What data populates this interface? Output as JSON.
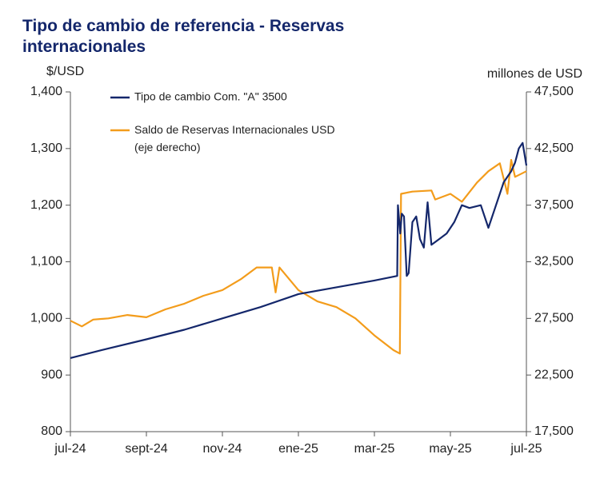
{
  "chart_data": {
    "type": "line",
    "title": "Tipo de cambio de referencia - Reservas internacionales",
    "y_label": "$/USD",
    "y2_label": "millones de USD",
    "xlim": [
      0,
      12
    ],
    "xticks": [
      {
        "value": 0,
        "label": "jul-24"
      },
      {
        "value": 2,
        "label": "sept-24"
      },
      {
        "value": 4,
        "label": "nov-24"
      },
      {
        "value": 6,
        "label": "ene-25"
      },
      {
        "value": 8,
        "label": "mar-25"
      },
      {
        "value": 10,
        "label": "may-25"
      },
      {
        "value": 12,
        "label": "jul-25"
      }
    ],
    "ylim": [
      800,
      1400
    ],
    "yticks": [
      800,
      900,
      {
        "value": 1000,
        "label": "1,000"
      },
      {
        "value": 1100,
        "label": "1,100"
      },
      {
        "value": 1200,
        "label": "1,200"
      },
      {
        "value": 1300,
        "label": "1,300"
      },
      {
        "value": 1400,
        "label": "1,400"
      }
    ],
    "y2lim": [
      17500,
      47500
    ],
    "y2ticks": [
      {
        "value": 17500,
        "label": "17,500"
      },
      {
        "value": 22500,
        "label": "22,500"
      },
      {
        "value": 27500,
        "label": "27,500"
      },
      {
        "value": 32500,
        "label": "32,500"
      },
      {
        "value": 37500,
        "label": "37,500"
      },
      {
        "value": 42500,
        "label": "42,500"
      },
      {
        "value": 47500,
        "label": "47,500"
      }
    ],
    "series": [
      {
        "name": "Tipo de cambio Com. \"A\" 3500",
        "color": "#14276b",
        "x": [
          0,
          1,
          2,
          3,
          4,
          5,
          6,
          7,
          8,
          8.6,
          8.62,
          8.68,
          8.72,
          8.78,
          8.85,
          8.9,
          9.0,
          9.1,
          9.2,
          9.3,
          9.4,
          9.5,
          9.7,
          9.9,
          10.1,
          10.3,
          10.5,
          10.8,
          11.0,
          11.2,
          11.4,
          11.6,
          11.7,
          11.8,
          11.9,
          12
        ],
        "values": [
          930,
          947,
          963,
          980,
          1000,
          1020,
          1043,
          1055,
          1067,
          1075,
          1200,
          1150,
          1185,
          1180,
          1075,
          1080,
          1170,
          1180,
          1140,
          1125,
          1205,
          1130,
          1140,
          1150,
          1170,
          1200,
          1195,
          1200,
          1160,
          1200,
          1240,
          1260,
          1275,
          1300,
          1310,
          1270
        ]
      },
      {
        "name": "Saldo de Reservas Internacionales USD (eje derecho)",
        "color": "#f39c1b",
        "axis": "y2",
        "x": [
          0,
          0.3,
          0.6,
          1,
          1.5,
          2,
          2.5,
          3,
          3.5,
          4,
          4.5,
          4.9,
          5.3,
          5.4,
          5.5,
          6.0,
          6.5,
          7,
          7.5,
          8,
          8.5,
          8.67,
          8.7,
          9.0,
          9.5,
          9.6,
          10.0,
          10.3,
          10.7,
          11.0,
          11.3,
          11.5,
          11.6,
          11.7,
          12
        ],
        "values": [
          27300,
          26800,
          27400,
          27500,
          27800,
          27600,
          28300,
          28800,
          29500,
          30000,
          31000,
          32000,
          32000,
          29800,
          32000,
          30000,
          29000,
          28500,
          27500,
          26000,
          24700,
          24400,
          38500,
          38700,
          38800,
          38000,
          38500,
          37800,
          39500,
          40500,
          41200,
          38500,
          41500,
          40000,
          40500
        ]
      }
    ]
  }
}
